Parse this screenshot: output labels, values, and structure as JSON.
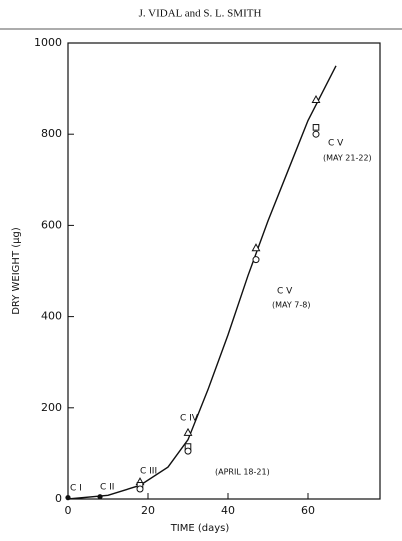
{
  "header": "J. VIDAL and S. L. SMITH",
  "chart_data": {
    "type": "scatter",
    "xlabel": "TIME (days)",
    "ylabel": "DRY WEIGHT (µg)",
    "xlim": [
      0,
      78
    ],
    "ylim": [
      0,
      1000
    ],
    "xticks": [
      0,
      20,
      40,
      60
    ],
    "yticks": [
      0,
      200,
      400,
      600,
      800,
      1000
    ],
    "series": [
      {
        "marker": "filled-circle",
        "color": "#111",
        "x": [
          0,
          8
        ],
        "values": [
          3,
          5
        ]
      },
      {
        "marker": "triangle",
        "color": "#111",
        "x": [
          18,
          30,
          47,
          62
        ],
        "values": [
          37,
          145,
          550,
          875
        ]
      },
      {
        "marker": "square",
        "color": "#111",
        "x": [
          18,
          30,
          62
        ],
        "values": [
          30,
          115,
          815
        ]
      },
      {
        "marker": "circle",
        "color": "#111",
        "x": [
          18,
          30,
          47,
          62
        ],
        "values": [
          22,
          105,
          525,
          800
        ]
      }
    ],
    "curve": {
      "color": "#111",
      "x": [
        0,
        10,
        18,
        25,
        30,
        35,
        40,
        45,
        50,
        55,
        60,
        67
      ],
      "values": [
        0,
        8,
        30,
        70,
        130,
        240,
        360,
        490,
        610,
        720,
        830,
        950
      ]
    },
    "annotations": [
      "C I",
      "C II",
      "C III",
      "C IV",
      "(APRIL 18-21)",
      "C V",
      "(MAY 7-8)",
      "C V",
      "(MAY 21-22)"
    ]
  }
}
